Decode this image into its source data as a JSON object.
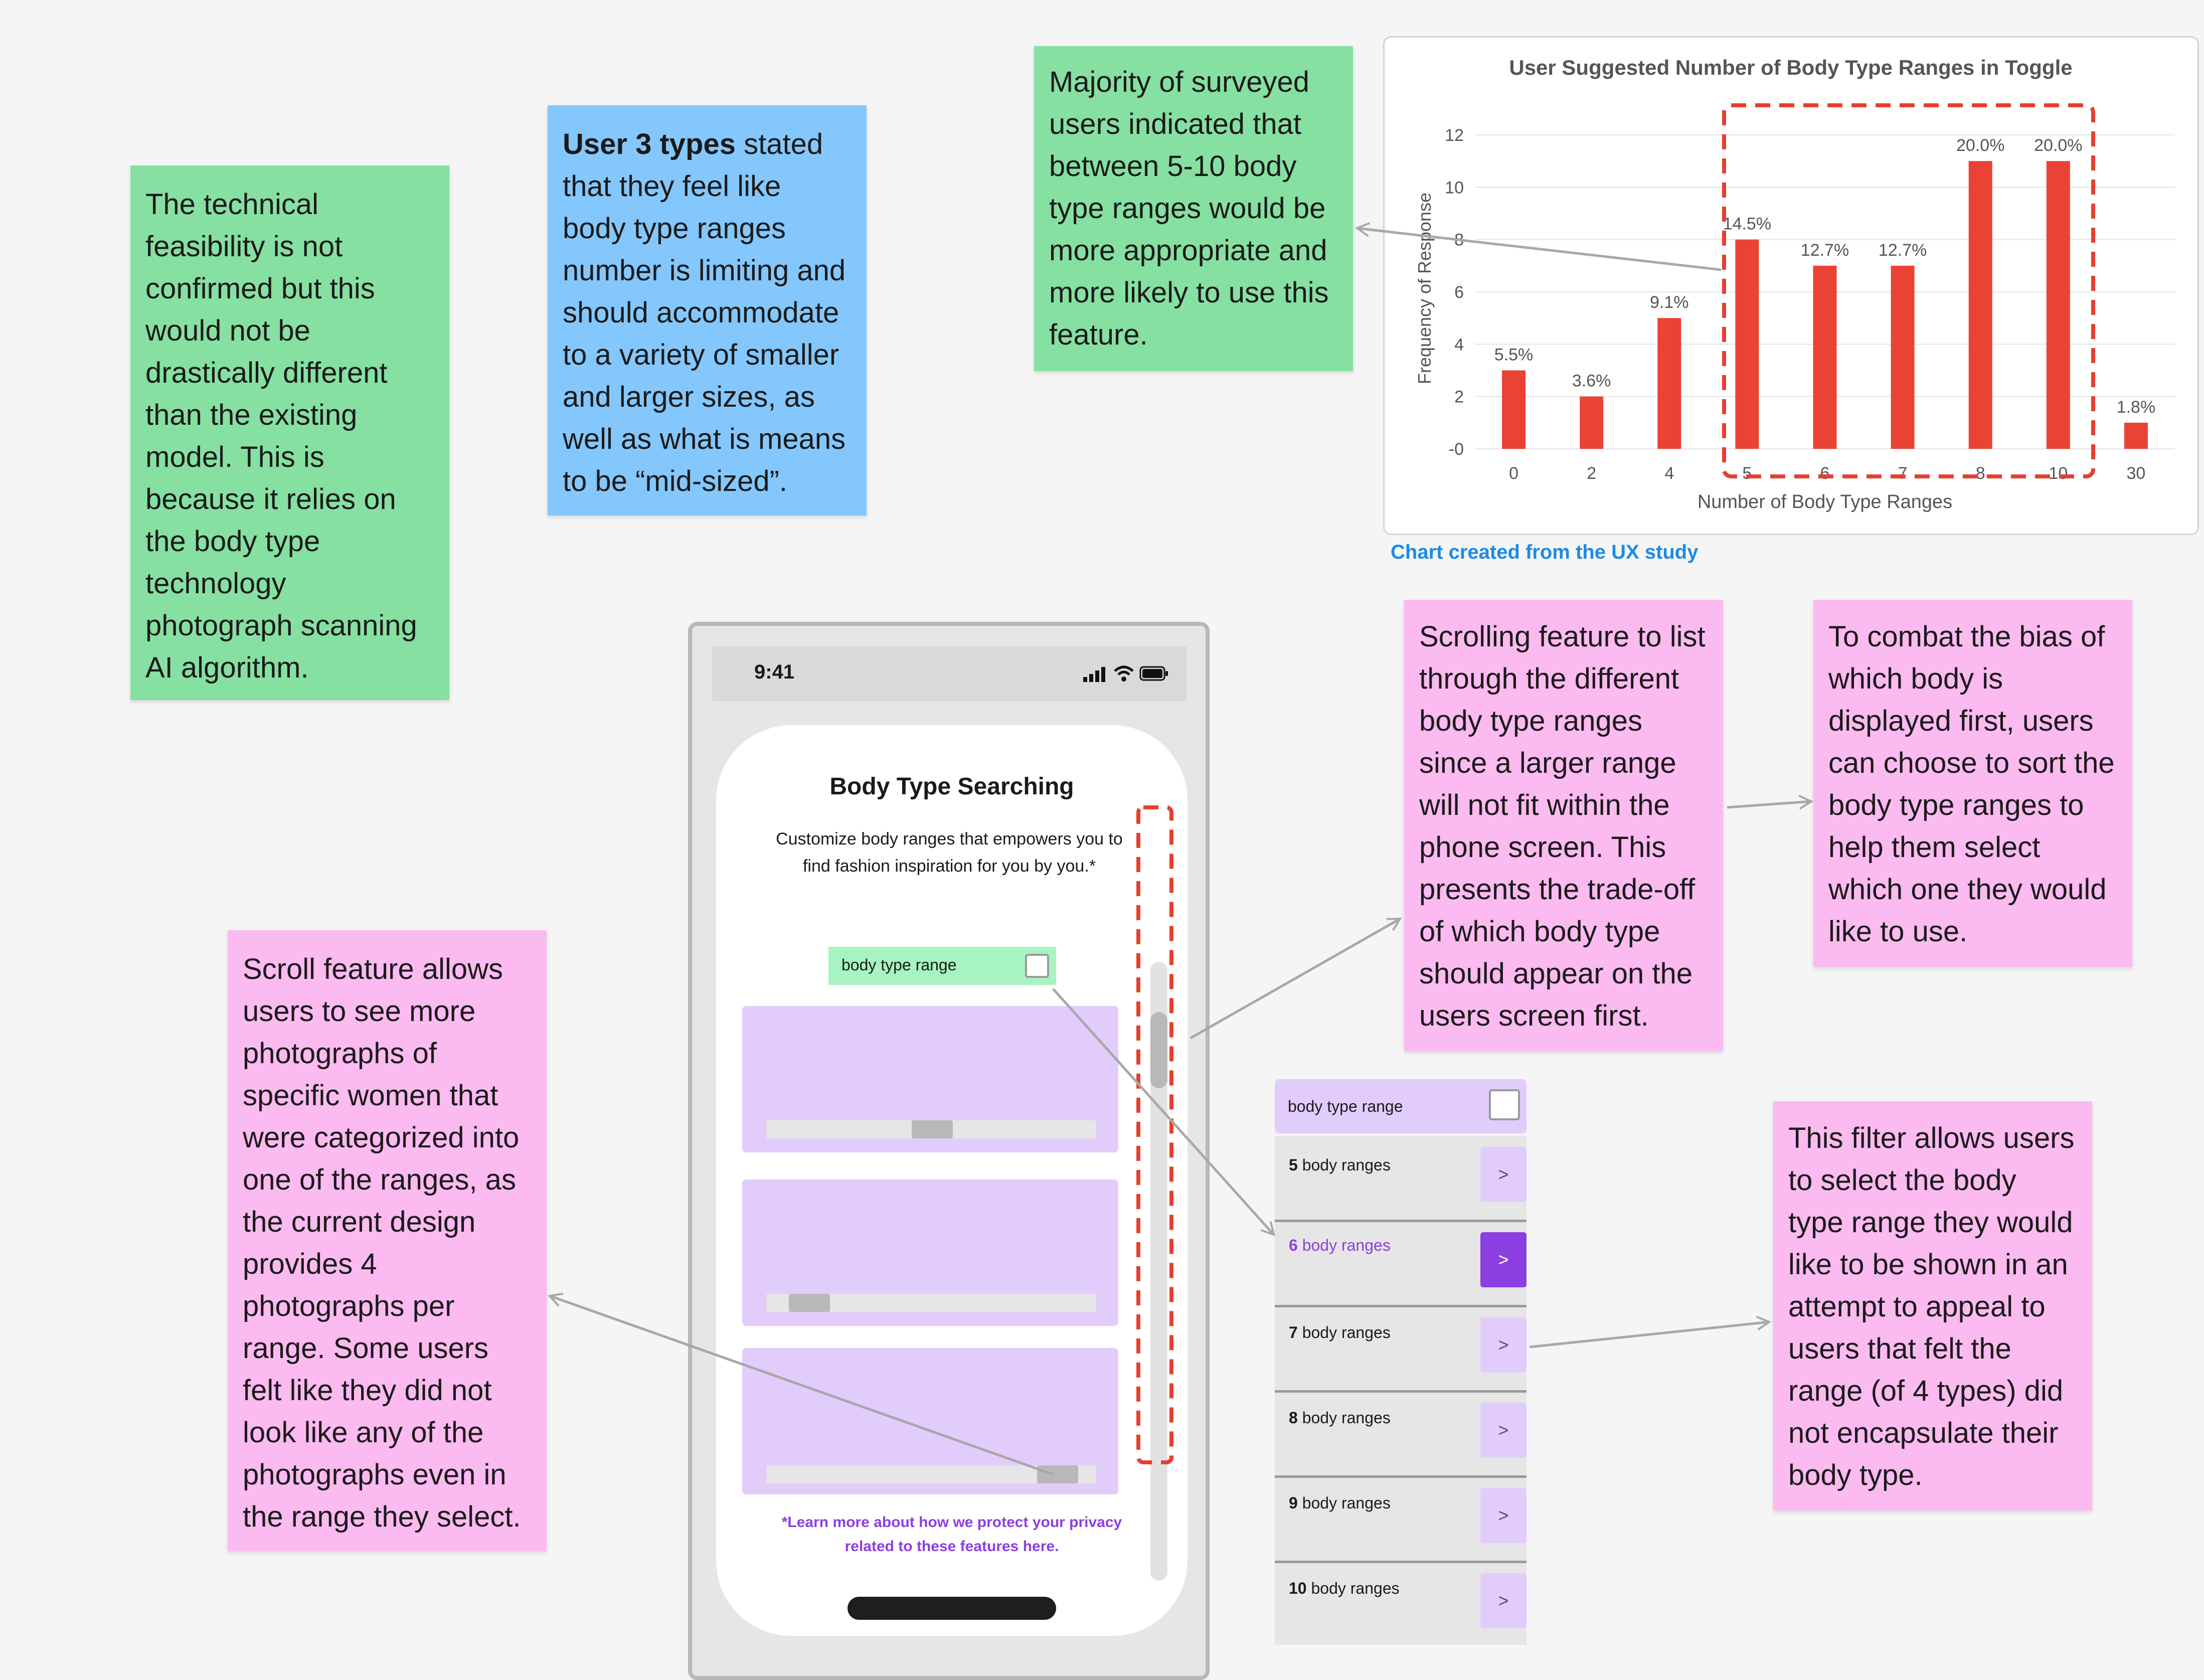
{
  "notes": {
    "feasibility": "The technical feasibility is not confirmed but this would not be drastically different than the existing model. This is because it relies on the body type technology photograph scanning AI algorithm.",
    "user3_bold": "User 3 types",
    "user3_rest": " stated that they feel like body type ranges number is limiting and should accommodate to a variety of smaller and larger sizes, as well as what is means to be “mid-sized”.",
    "majority": "Majority of surveyed users indicated that between 5-10 body type ranges would be more appropriate and more likely to use this feature.",
    "scroll_photos": "Scroll feature allows users to see more photographs of specific women that were categorized into one of the ranges, as the current design provides 4 photographs per range. Some users felt like they did not look like any of the photographs even in the range they select.",
    "scrolling_list": "Scrolling feature to list through the different body type ranges since a larger range will not fit within the phone screen. This presents the trade-off of which body type should appear on the users screen first.",
    "combat_bias": "To combat the bias of which body is displayed first, users can choose to sort the body type ranges to help them select which one they would like to use.",
    "filter": "This filter allows users to select the body type range they would like to be shown in an attempt to appeal to users that felt the range (of 4 types) did not encapsulate their body type."
  },
  "chart_note": "Chart created from the UX study",
  "colors": {
    "bar": "#ea4335",
    "green_note": "#86e0a2",
    "blue_note": "#84c7fc",
    "pink_note": "#fbbaf0",
    "purple": "#8c3fe0",
    "lavender": "#e2ccfc",
    "mint": "#a7f3c1"
  },
  "chart_data": {
    "type": "bar",
    "title": "User Suggested Number of Body Type Ranges in Toggle",
    "xlabel": "Number of Body Type Ranges",
    "ylabel": "Frequency of Response",
    "categories": [
      "0",
      "2",
      "4",
      "5",
      "6",
      "7",
      "8",
      "10",
      "30"
    ],
    "values": [
      3,
      2,
      5,
      8,
      7,
      7,
      11,
      11,
      1
    ],
    "data_labels": [
      "5.5%",
      "3.6%",
      "9.1%",
      "14.5%",
      "12.7%",
      "12.7%",
      "20.0%",
      "20.0%",
      "1.8%"
    ],
    "yticks": [
      "-0",
      "2",
      "4",
      "6",
      "8",
      "10",
      "12"
    ],
    "ylim": [
      0,
      12
    ],
    "grid": true,
    "highlight": [
      "5",
      "6",
      "7",
      "8",
      "10"
    ]
  },
  "phone": {
    "time": "9:41",
    "status_icons": [
      "signal-icon",
      "wifi-icon",
      "battery-icon"
    ],
    "title": "Body Type Searching",
    "description": "Customize body ranges that empowers you to find fashion inspiration for you by you.*",
    "toggle_label": "body type range",
    "cards": [
      {
        "scroll_position": 0.5
      },
      {
        "scroll_position": 0.1
      },
      {
        "scroll_position": 0.9
      }
    ],
    "privacy_note": "*Learn more about how we protect your privacy related to these features here."
  },
  "range_list": {
    "header": "body type range",
    "items": [
      {
        "num": "5",
        "text": " body ranges",
        "button": ">",
        "active": false
      },
      {
        "num": "6",
        "text": " body ranges",
        "button": ">",
        "active": true
      },
      {
        "num": "7",
        "text": " body ranges",
        "button": ">",
        "active": false
      },
      {
        "num": "8",
        "text": " body ranges",
        "button": ">",
        "active": false
      },
      {
        "num": "9",
        "text": " body ranges",
        "button": ">",
        "active": false
      },
      {
        "num": "10",
        "text": " body ranges",
        "button": ">",
        "active": false
      }
    ]
  }
}
